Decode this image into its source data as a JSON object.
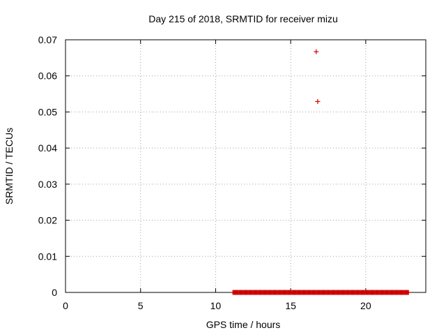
{
  "chart_data": {
    "type": "scatter",
    "title": "Day 215 of 2018, SRMTID for receiver mizu",
    "xlabel": "GPS time / hours",
    "ylabel": "SRMTID / TECUs",
    "xlim": [
      0,
      24
    ],
    "ylim": [
      0,
      0.07
    ],
    "x_ticks": [
      0,
      5,
      10,
      15,
      20
    ],
    "x_tick_labels": [
      "0",
      "5",
      "10",
      "15",
      "20"
    ],
    "y_ticks": [
      0,
      0.01,
      0.02,
      0.03,
      0.04,
      0.05,
      0.06,
      0.07
    ],
    "y_tick_labels": [
      "0",
      "0.01",
      "0.02",
      "0.03",
      "0.04",
      "0.05",
      "0.06",
      "0.07"
    ],
    "grid": true,
    "marker": "+",
    "marker_color": "#cc0000",
    "series": [
      {
        "name": "SRMTID",
        "points": [
          {
            "x": 16.7,
            "y": 0.0667
          },
          {
            "x": 16.8,
            "y": 0.0529
          }
        ],
        "zero_points_x_range": [
          11.15,
          22.85
        ],
        "zero_points_step": 0.05,
        "zero_points_y": 0
      }
    ]
  }
}
